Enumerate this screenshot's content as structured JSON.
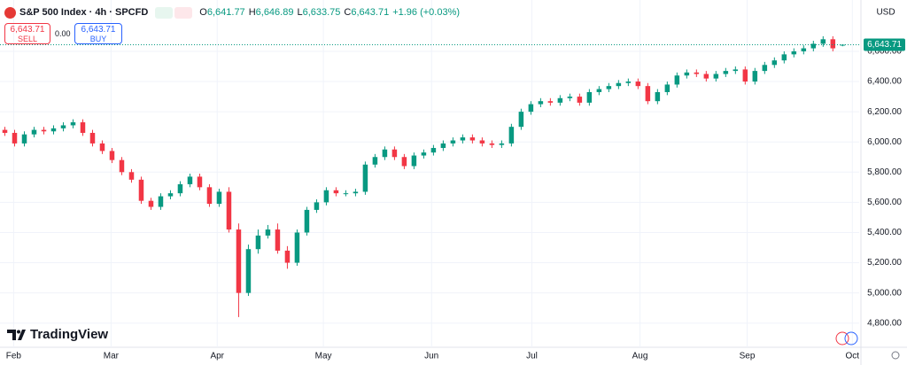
{
  "header": {
    "symbol": "S&P 500 Index · 4h · SPCFD",
    "ohlc": [
      {
        "k": "O",
        "v": "6,641.77"
      },
      {
        "k": "H",
        "v": "6,646.89"
      },
      {
        "k": "L",
        "v": "6,633.75"
      },
      {
        "k": "C",
        "v": "6,643.71"
      }
    ],
    "change": "+1.96 (+0.03%)",
    "currency": "USD"
  },
  "trade": {
    "sell_price": "6,643.71",
    "sell": "SELL",
    "spread": "0.00",
    "buy_price": "6,643.71",
    "buy": "BUY"
  },
  "brand": "TradingView",
  "chart_data": {
    "type": "candlestick",
    "up_color": "#089981",
    "down_color": "#f23645",
    "grid": true,
    "open": [
      6080,
      6060,
      5990,
      6050,
      6080,
      6070,
      6090,
      6110,
      6130,
      6060,
      5990,
      5940,
      5880,
      5800,
      5750,
      5610,
      5570,
      5640,
      5660,
      5720,
      5770,
      5700,
      5590,
      5670,
      5420,
      5000,
      5290,
      5380,
      5420,
      5280,
      5200,
      5400,
      5550,
      5600,
      5680,
      5660,
      5660,
      5670,
      5850,
      5900,
      5950,
      5900,
      5840,
      5910,
      5930,
      5960,
      5990,
      6010,
      6030,
      6010,
      5990,
      5980,
      5990,
      6100,
      6200,
      6250,
      6270,
      6260,
      6290,
      6300,
      6260,
      6330,
      6350,
      6370,
      6390,
      6400,
      6370,
      6270,
      6330,
      6380,
      6440,
      6460,
      6450,
      6420,
      6450,
      6470,
      6480,
      6400,
      6470,
      6510,
      6540,
      6580,
      6600,
      6620,
      6650,
      6680,
      6641.77
    ],
    "high": [
      6100,
      6080,
      6070,
      6100,
      6100,
      6110,
      6130,
      6150,
      6150,
      6080,
      6010,
      5960,
      5900,
      5820,
      5770,
      5630,
      5660,
      5680,
      5740,
      5790,
      5790,
      5720,
      5690,
      5700,
      5460,
      5320,
      5420,
      5450,
      5460,
      5310,
      5420,
      5570,
      5620,
      5700,
      5700,
      5680,
      5690,
      5870,
      5920,
      5970,
      5970,
      5920,
      5930,
      5950,
      5980,
      6010,
      6030,
      6050,
      6050,
      6030,
      6010,
      6010,
      6120,
      6220,
      6270,
      6290,
      6290,
      6310,
      6320,
      6320,
      6350,
      6370,
      6390,
      6410,
      6420,
      6420,
      6390,
      6350,
      6400,
      6460,
      6480,
      6480,
      6470,
      6470,
      6490,
      6500,
      6500,
      6490,
      6530,
      6560,
      6600,
      6620,
      6640,
      6670,
      6700,
      6700,
      6646.89
    ],
    "low": [
      6040,
      5970,
      5970,
      6030,
      6050,
      6050,
      6070,
      6090,
      6040,
      5970,
      5920,
      5860,
      5780,
      5730,
      5590,
      5550,
      5550,
      5620,
      5640,
      5700,
      5680,
      5570,
      5570,
      5400,
      4840,
      4980,
      5260,
      5360,
      5260,
      5160,
      5180,
      5380,
      5530,
      5580,
      5640,
      5640,
      5640,
      5650,
      5830,
      5880,
      5880,
      5820,
      5820,
      5890,
      5910,
      5940,
      5970,
      5990,
      5990,
      5970,
      5960,
      5960,
      5970,
      6080,
      6180,
      6230,
      6240,
      6240,
      6270,
      6240,
      6240,
      6310,
      6330,
      6350,
      6370,
      6350,
      6250,
      6250,
      6310,
      6360,
      6420,
      6430,
      6400,
      6400,
      6430,
      6450,
      6380,
      6380,
      6450,
      6490,
      6520,
      6560,
      6580,
      6600,
      6630,
      6600,
      6633.75
    ],
    "close": [
      6060,
      5990,
      6050,
      6080,
      6070,
      6090,
      6110,
      6130,
      6060,
      5990,
      5940,
      5880,
      5800,
      5750,
      5610,
      5570,
      5640,
      5660,
      5720,
      5770,
      5700,
      5590,
      5670,
      5420,
      5000,
      5290,
      5380,
      5420,
      5280,
      5200,
      5400,
      5550,
      5600,
      5680,
      5660,
      5660,
      5670,
      5850,
      5900,
      5950,
      5900,
      5840,
      5910,
      5930,
      5960,
      5990,
      6010,
      6030,
      6010,
      5990,
      5980,
      5990,
      6100,
      6200,
      6250,
      6270,
      6260,
      6290,
      6300,
      6260,
      6330,
      6350,
      6370,
      6390,
      6400,
      6370,
      6270,
      6330,
      6380,
      6440,
      6460,
      6450,
      6420,
      6450,
      6470,
      6480,
      6400,
      6470,
      6510,
      6540,
      6580,
      6600,
      6620,
      6650,
      6680,
      6620,
      6643.71
    ],
    "xlim": [
      -0.5,
      87.7
    ],
    "xticks": [
      {
        "value": 0.9,
        "label": "Feb"
      },
      {
        "value": 10.9,
        "label": "Mar"
      },
      {
        "value": 21.8,
        "label": "Apr"
      },
      {
        "value": 32.7,
        "label": "May"
      },
      {
        "value": 43.8,
        "label": "Jun"
      },
      {
        "value": 54.1,
        "label": "Jul"
      },
      {
        "value": 65.2,
        "label": "Aug"
      },
      {
        "value": 76.2,
        "label": "Sep"
      },
      {
        "value": 87,
        "label": "Oct"
      }
    ],
    "ylim": [
      4640,
      6940
    ],
    "yticks": [
      {
        "value": 4800,
        "label": "4,800.00"
      },
      {
        "value": 5000,
        "label": "5,000.00"
      },
      {
        "value": 5200,
        "label": "5,200.00"
      },
      {
        "value": 5400,
        "label": "5,400.00"
      },
      {
        "value": 5600,
        "label": "5,600.00"
      },
      {
        "value": 5800,
        "label": "5,800.00"
      },
      {
        "value": 6000,
        "label": "6,000.00"
      },
      {
        "value": 6200,
        "label": "6,200.00"
      },
      {
        "value": 6400,
        "label": "6,400.00"
      },
      {
        "value": 6600,
        "label": "6,600.00"
      }
    ],
    "last_price": {
      "value": 6643.71,
      "label": "6,643.71"
    }
  }
}
